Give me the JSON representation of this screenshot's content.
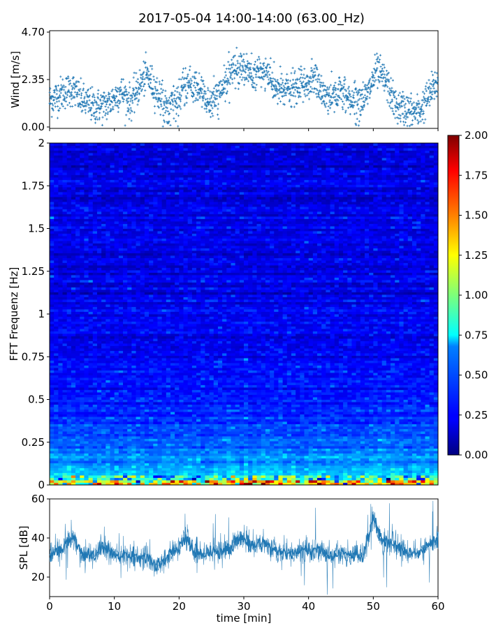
{
  "title": "2017-05-04 14:00-14:00 (63.00_Hz)",
  "chart_data": [
    {
      "type": "scatter",
      "name": "wind",
      "ylabel": "Wind [m/s]",
      "yticks": [
        "0.00",
        "2.35",
        "4.70"
      ],
      "ylim": [
        0,
        4.7
      ],
      "xlim": [
        0,
        60
      ],
      "marker": "+",
      "color": "#1f77b4",
      "baseline_envelope": [
        [
          0,
          1.3
        ],
        [
          2,
          1.7
        ],
        [
          3.5,
          1.9
        ],
        [
          5,
          1.3
        ],
        [
          7,
          1.0
        ],
        [
          9,
          1.1
        ],
        [
          11,
          1.8
        ],
        [
          12.5,
          1.2
        ],
        [
          14,
          2.1
        ],
        [
          15,
          2.6
        ],
        [
          17,
          1.5
        ],
        [
          18.5,
          0.9
        ],
        [
          20,
          1.5
        ],
        [
          21.5,
          2.1
        ],
        [
          23,
          1.9
        ],
        [
          25,
          1.1
        ],
        [
          27,
          2.0
        ],
        [
          28.5,
          2.9
        ],
        [
          30,
          3.0
        ],
        [
          31.5,
          2.5
        ],
        [
          33,
          2.8
        ],
        [
          35,
          1.9
        ],
        [
          37,
          1.8
        ],
        [
          39,
          2.0
        ],
        [
          41,
          2.4
        ],
        [
          42.5,
          1.5
        ],
        [
          45,
          1.7
        ],
        [
          47,
          1.3
        ],
        [
          49,
          1.5
        ],
        [
          50.5,
          2.8
        ],
        [
          52,
          2.2
        ],
        [
          53.5,
          1.0
        ],
        [
          55,
          0.9
        ],
        [
          57,
          0.7
        ],
        [
          58.5,
          1.5
        ],
        [
          60,
          2.3
        ]
      ]
    },
    {
      "type": "heatmap",
      "name": "fft",
      "ylabel": "FFT Frequenz [Hz]",
      "yticks": [
        "0",
        "0.25",
        "0.5",
        "0.75",
        "1",
        "1.25",
        "1.5",
        "1.75",
        "2"
      ],
      "ylim": [
        0,
        2
      ],
      "xlim": [
        0,
        60
      ],
      "colormap": "jet",
      "colorbar": {
        "vmin": 0,
        "vmax": 2,
        "ticks": [
          "0.00",
          "0.25",
          "0.50",
          "0.75",
          "1.00",
          "1.25",
          "1.50",
          "1.75",
          "2.00"
        ]
      }
    },
    {
      "type": "line",
      "name": "spl",
      "ylabel": "SPL [dB]",
      "xlabel": "time [min]",
      "yticks": [
        "20",
        "40",
        "60"
      ],
      "xticks": [
        "0",
        "10",
        "20",
        "30",
        "40",
        "50",
        "60"
      ],
      "ylim": [
        10,
        60
      ],
      "xlim": [
        0,
        60
      ],
      "color": "#1f77b4",
      "baseline": [
        [
          0,
          32
        ],
        [
          2,
          34
        ],
        [
          3.5,
          41
        ],
        [
          5,
          32
        ],
        [
          7,
          30
        ],
        [
          8,
          36
        ],
        [
          10,
          31
        ],
        [
          13,
          31
        ],
        [
          15,
          30
        ],
        [
          17,
          25
        ],
        [
          18.5,
          31
        ],
        [
          20,
          35
        ],
        [
          21,
          40
        ],
        [
          22.5,
          33
        ],
        [
          24,
          32
        ],
        [
          26,
          34
        ],
        [
          28,
          34
        ],
        [
          29.5,
          41
        ],
        [
          31,
          36
        ],
        [
          33,
          38
        ],
        [
          35,
          33
        ],
        [
          38,
          32
        ],
        [
          40,
          34
        ],
        [
          42,
          33
        ],
        [
          44,
          31
        ],
        [
          46,
          32
        ],
        [
          48.5,
          31
        ],
        [
          50,
          50
        ],
        [
          51.5,
          38
        ],
        [
          53,
          37
        ],
        [
          55,
          33
        ],
        [
          57,
          32
        ],
        [
          59,
          37
        ],
        [
          60,
          39
        ]
      ]
    }
  ]
}
